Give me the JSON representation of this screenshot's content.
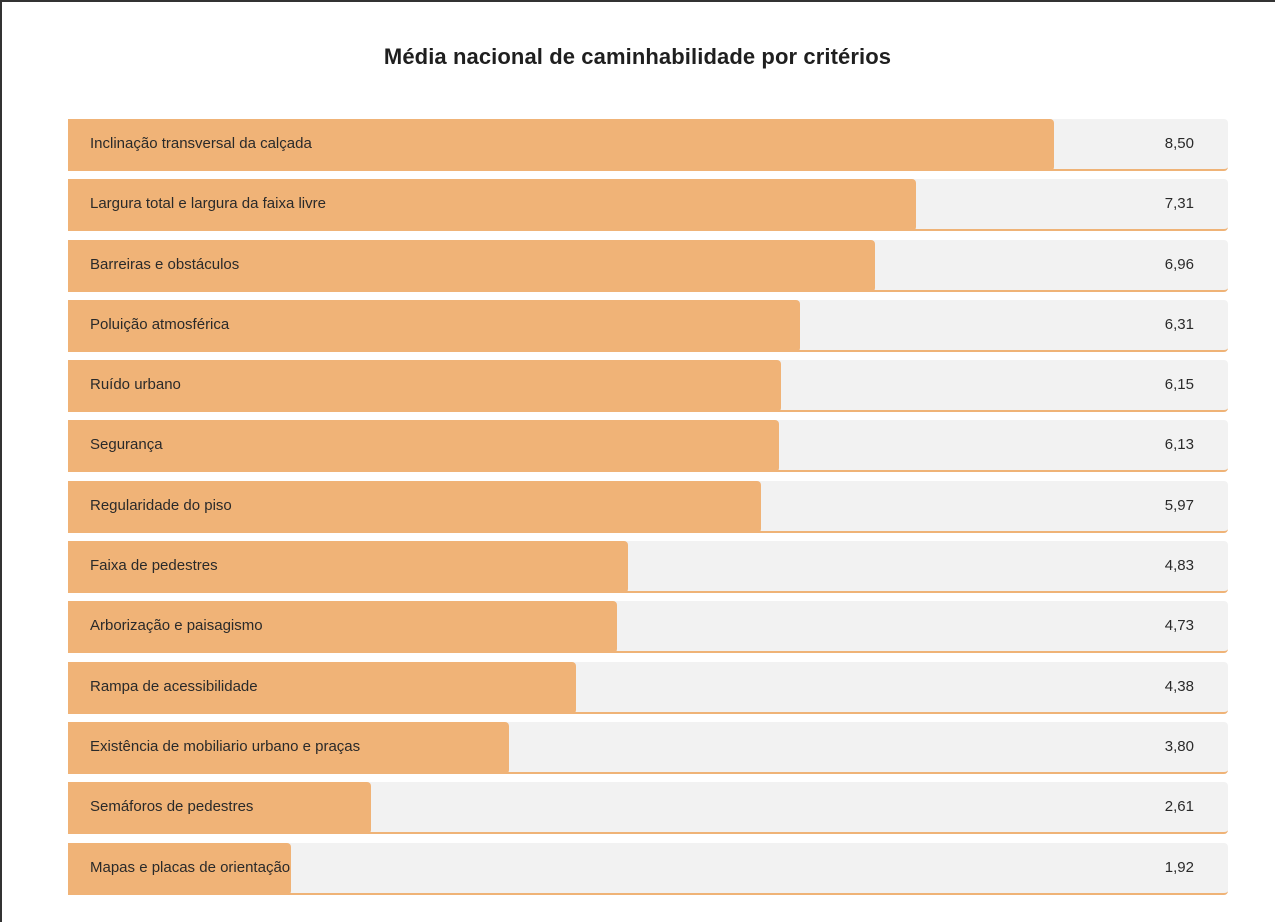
{
  "chart_data": {
    "type": "bar",
    "orientation": "horizontal",
    "title": "Média nacional de caminhabilidade por critérios",
    "categories": [
      "Inclinação transversal da calçada",
      "Largura total e largura da faixa livre",
      "Barreiras e obstáculos",
      "Poluição atmosférica",
      "Ruído urbano",
      "Segurança",
      "Regularidade do piso",
      "Faixa de pedestres",
      "Arborização e paisagismo",
      "Rampa de acessibilidade",
      "Existência de mobiliario urbano e praças",
      "Semáforos de pedestres",
      "Mapas e placas de orientação"
    ],
    "values": [
      8.5,
      7.31,
      6.96,
      6.31,
      6.15,
      6.13,
      5.97,
      4.83,
      4.73,
      4.38,
      3.8,
      2.61,
      1.92
    ],
    "value_labels": [
      "8,50",
      "7,31",
      "6,96",
      "6,31",
      "6,15",
      "6,13",
      "5,97",
      "4,83",
      "4,73",
      "4,38",
      "3,80",
      "2,61",
      "1,92"
    ],
    "xlim": [
      0,
      10
    ],
    "grid": false,
    "legend": "none",
    "colors": {
      "bar": "#f0b377",
      "track": "#f2f2f2",
      "text": "#2a2a2a"
    }
  }
}
